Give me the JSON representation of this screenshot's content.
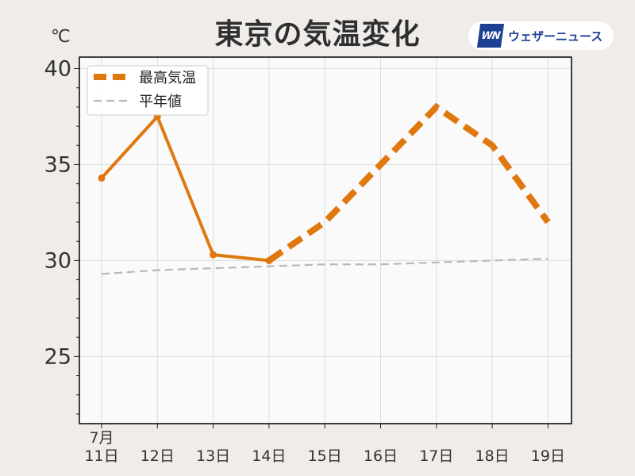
{
  "header": {
    "title": "東京の気温変化",
    "unit": "℃",
    "brand_logo": "WN",
    "brand_name": "ウェザーニュース"
  },
  "colors": {
    "max_temp": "#e07810",
    "normal": "#b8b8b8",
    "plot_bg": "#fbfafb",
    "page_bg": "#efecea",
    "grid": "#dcdcdc"
  },
  "chart_data": {
    "type": "line",
    "x": [
      "7月\n11日",
      "12日",
      "13日",
      "14日",
      "15日",
      "16日",
      "17日",
      "18日",
      "19日"
    ],
    "month_label": "7月",
    "ylim": [
      21.5,
      40.6
    ],
    "yticks": [
      25,
      30,
      35,
      40
    ],
    "grid": true,
    "legend_position": "top-left",
    "series": [
      {
        "name": "最高気温",
        "values": [
          34.3,
          37.5,
          30.3,
          30.0,
          32.0,
          35.0,
          38.0,
          36.0,
          32.0
        ],
        "observed_through_index": 3,
        "style": "solid observed, dashed forecast"
      },
      {
        "name": "平年値",
        "values": [
          29.3,
          29.5,
          29.6,
          29.7,
          29.8,
          29.8,
          29.9,
          30.0,
          30.1
        ],
        "style": "dashed"
      }
    ]
  }
}
